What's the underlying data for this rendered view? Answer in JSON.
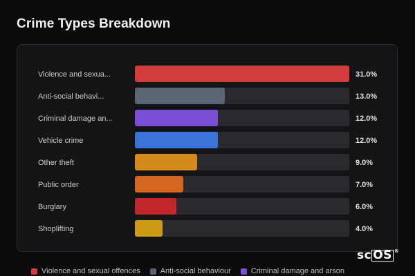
{
  "title": "Crime Types Breakdown",
  "logo": {
    "prefix": "sc",
    "boxed": "OS",
    "mark": "®"
  },
  "colors": {
    "track": "#2a2a2e",
    "label": "#cfcfcf",
    "value": "#e0e0e0"
  },
  "chart_data": {
    "type": "bar",
    "orientation": "horizontal",
    "categories": [
      "Violence and sexua...",
      "Anti-social behavi...",
      "Criminal damage an...",
      "Vehicle crime",
      "Other theft",
      "Public order",
      "Burglary",
      "Shoplifting"
    ],
    "values": [
      31.0,
      13.0,
      12.0,
      12.0,
      9.0,
      7.0,
      6.0,
      4.0
    ],
    "value_labels": [
      "31.0%",
      "13.0%",
      "12.0%",
      "12.0%",
      "9.0%",
      "7.0%",
      "6.0%",
      "4.0%"
    ],
    "bar_colors": [
      "#d13c3c",
      "#5b6675",
      "#7a4fd6",
      "#3a74d8",
      "#d48a1a",
      "#d4661f",
      "#c0282c",
      "#cc9a14"
    ],
    "xlim": [
      0,
      31
    ],
    "grid": false,
    "legend_position": "bottom"
  },
  "legend": [
    {
      "label": "Violence and sexual offences",
      "color": "#d13c3c"
    },
    {
      "label": "Anti-social behaviour",
      "color": "#5b6675"
    },
    {
      "label": "Criminal damage and arson",
      "color": "#7a4fd6"
    }
  ]
}
